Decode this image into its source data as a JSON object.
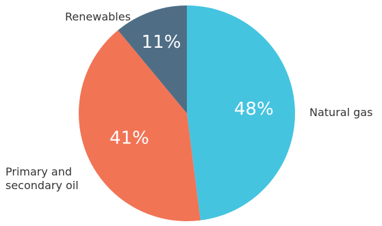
{
  "chart_data": {
    "type": "pie",
    "title": "",
    "slices": [
      {
        "label": "Natural gas",
        "label_lines": [
          "Natural gas"
        ],
        "value": 48,
        "value_label": "48%",
        "color": "#45c4e0"
      },
      {
        "label": "Primary and secondary oil",
        "label_lines": [
          "Primary and",
          "secondary oil"
        ],
        "value": 41,
        "value_label": "41%",
        "color": "#f17455"
      },
      {
        "label": "Renewables",
        "label_lines": [
          "Renewables"
        ],
        "value": 11,
        "value_label": "11%",
        "color": "#4f6e85"
      }
    ],
    "start_angle_deg": 0,
    "direction": "clockwise",
    "legend": "none"
  }
}
